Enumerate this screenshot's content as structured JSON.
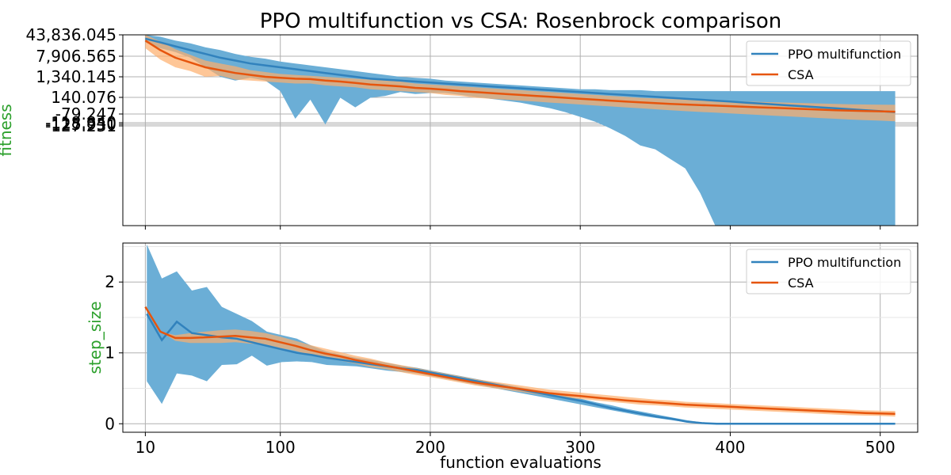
{
  "chart_data": [
    {
      "type": "line",
      "title": "PPO multifunction vs CSA: Rosenbrock comparison",
      "xlabel": "",
      "ylabel": "fitness",
      "ylabel_color": "#2ca02c",
      "x_ticks": [
        10,
        100,
        200,
        300,
        400,
        500
      ],
      "y_ticks": [
        "43,836.045",
        "7,906.565",
        "1,340.145",
        "140.076",
        "-79.247",
        "-118.840",
        "-125.950",
        "-127.231"
      ],
      "grid": true,
      "legend": "top-right",
      "series": [
        {
          "name": "PPO multifunction",
          "color": "#3182bd",
          "fill": "#6baed6",
          "x": [
            10,
            20,
            30,
            40,
            50,
            60,
            70,
            80,
            90,
            100,
            110,
            120,
            130,
            140,
            150,
            160,
            170,
            180,
            190,
            200,
            210,
            220,
            230,
            240,
            250,
            260,
            270,
            280,
            290,
            300,
            310,
            320,
            330,
            340,
            350,
            360,
            370,
            380,
            390,
            400,
            410,
            420,
            430,
            440,
            450,
            460,
            470,
            480,
            490,
            500,
            510
          ],
          "mean": [
            0.98,
            0.96,
            0.94,
            0.92,
            0.9,
            0.88,
            0.865,
            0.85,
            0.84,
            0.83,
            0.82,
            0.81,
            0.8,
            0.79,
            0.78,
            0.77,
            0.765,
            0.76,
            0.755,
            0.75,
            0.745,
            0.74,
            0.735,
            0.73,
            0.725,
            0.72,
            0.715,
            0.71,
            0.705,
            0.7,
            0.695,
            0.69,
            0.685,
            0.68,
            0.675,
            0.67,
            0.665,
            0.66,
            0.655,
            0.65,
            0.645,
            0.64,
            0.635,
            0.63,
            0.625,
            0.62,
            0.615,
            0.61,
            0.605,
            0.6,
            0.595
          ],
          "upper": [
            1.0,
            0.99,
            0.97,
            0.955,
            0.935,
            0.92,
            0.9,
            0.885,
            0.875,
            0.86,
            0.85,
            0.84,
            0.83,
            0.82,
            0.81,
            0.8,
            0.79,
            0.78,
            0.775,
            0.77,
            0.76,
            0.755,
            0.75,
            0.745,
            0.74,
            0.735,
            0.73,
            0.725,
            0.72,
            0.715,
            0.715,
            0.71,
            0.71,
            0.71,
            0.705,
            0.705,
            0.705,
            0.705,
            0.705,
            0.705,
            0.705,
            0.705,
            0.705,
            0.705,
            0.705,
            0.705,
            0.705,
            0.705,
            0.705,
            0.705,
            0.705
          ],
          "lower": [
            0.96,
            0.93,
            0.91,
            0.88,
            0.83,
            0.78,
            0.76,
            0.775,
            0.76,
            0.705,
            0.56,
            0.66,
            0.53,
            0.67,
            0.62,
            0.67,
            0.68,
            0.7,
            0.69,
            0.695,
            0.695,
            0.685,
            0.675,
            0.665,
            0.655,
            0.645,
            0.63,
            0.615,
            0.595,
            0.57,
            0.545,
            0.51,
            0.47,
            0.42,
            0.4,
            0.35,
            0.3,
            0.17,
            0.0,
            0.0,
            0.0,
            0.0,
            0.0,
            0.0,
            0.0,
            0.0,
            0.0,
            0.0,
            0.0,
            0.0,
            0.0
          ]
        },
        {
          "name": "CSA",
          "color": "#e6550d",
          "fill": "#fdae6b",
          "x": [
            10,
            20,
            30,
            40,
            50,
            60,
            70,
            80,
            90,
            100,
            110,
            120,
            130,
            140,
            150,
            160,
            170,
            180,
            190,
            200,
            210,
            220,
            230,
            240,
            250,
            260,
            270,
            280,
            290,
            300,
            310,
            320,
            330,
            340,
            350,
            360,
            370,
            380,
            390,
            400,
            410,
            420,
            430,
            440,
            450,
            460,
            470,
            480,
            490,
            500,
            510
          ],
          "mean": [
            0.97,
            0.92,
            0.88,
            0.855,
            0.83,
            0.815,
            0.8,
            0.79,
            0.78,
            0.775,
            0.77,
            0.768,
            0.76,
            0.755,
            0.748,
            0.74,
            0.735,
            0.73,
            0.722,
            0.718,
            0.712,
            0.705,
            0.7,
            0.695,
            0.69,
            0.685,
            0.68,
            0.675,
            0.67,
            0.665,
            0.66,
            0.655,
            0.65,
            0.646,
            0.642,
            0.638,
            0.635,
            0.632,
            0.629,
            0.626,
            0.623,
            0.62,
            0.617,
            0.614,
            0.611,
            0.608,
            0.605,
            0.603,
            0.601,
            0.599,
            0.597
          ],
          "upper": [
            1.0,
            0.965,
            0.925,
            0.895,
            0.865,
            0.85,
            0.835,
            0.815,
            0.805,
            0.795,
            0.79,
            0.785,
            0.78,
            0.775,
            0.77,
            0.765,
            0.76,
            0.755,
            0.745,
            0.74,
            0.735,
            0.73,
            0.725,
            0.72,
            0.715,
            0.71,
            0.705,
            0.7,
            0.695,
            0.69,
            0.685,
            0.68,
            0.675,
            0.67,
            0.667,
            0.664,
            0.661,
            0.658,
            0.655,
            0.652,
            0.65,
            0.648,
            0.646,
            0.644,
            0.642,
            0.64,
            0.638,
            0.636,
            0.635,
            0.634,
            0.633
          ],
          "lower": [
            0.93,
            0.87,
            0.83,
            0.81,
            0.78,
            0.785,
            0.765,
            0.76,
            0.755,
            0.75,
            0.745,
            0.745,
            0.735,
            0.73,
            0.725,
            0.715,
            0.71,
            0.705,
            0.7,
            0.695,
            0.685,
            0.68,
            0.67,
            0.665,
            0.66,
            0.655,
            0.65,
            0.645,
            0.64,
            0.635,
            0.63,
            0.625,
            0.62,
            0.615,
            0.61,
            0.605,
            0.6,
            0.596,
            0.592,
            0.588,
            0.584,
            0.58,
            0.576,
            0.572,
            0.568,
            0.564,
            0.56,
            0.556,
            0.553,
            0.55,
            0.547
          ]
        }
      ]
    },
    {
      "type": "line",
      "xlabel": "function evaluations",
      "ylabel": "step_size",
      "ylabel_color": "#2ca02c",
      "xlim": [
        -5,
        525
      ],
      "ylim": [
        -0.12,
        2.55
      ],
      "x_ticks": [
        10,
        100,
        200,
        300,
        400,
        500
      ],
      "y_ticks": [
        0,
        1,
        2
      ],
      "grid": true,
      "legend": "top-right",
      "series": [
        {
          "name": "PPO multifunction",
          "color": "#3182bd",
          "fill": "#6baed6",
          "x": [
            11,
            21,
            31,
            41,
            51,
            61,
            71,
            81,
            91,
            101,
            111,
            121,
            131,
            141,
            151,
            161,
            171,
            181,
            191,
            201,
            211,
            221,
            231,
            241,
            251,
            261,
            271,
            281,
            291,
            301,
            311,
            321,
            331,
            341,
            351,
            361,
            371,
            381,
            391,
            401,
            411,
            421,
            431,
            441,
            451,
            461,
            471,
            481,
            491,
            501,
            510
          ],
          "mean": [
            1.55,
            1.18,
            1.44,
            1.28,
            1.25,
            1.22,
            1.2,
            1.15,
            1.1,
            1.05,
            1.0,
            0.97,
            0.93,
            0.9,
            0.87,
            0.84,
            0.81,
            0.78,
            0.76,
            0.72,
            0.68,
            0.64,
            0.6,
            0.56,
            0.52,
            0.48,
            0.44,
            0.4,
            0.36,
            0.32,
            0.27,
            0.22,
            0.18,
            0.14,
            0.1,
            0.07,
            0.03,
            0.01,
            0.0,
            0.0,
            0.0,
            0.0,
            0.0,
            0.0,
            0.0,
            0.0,
            0.0,
            0.0,
            0.0,
            0.0,
            0.0
          ],
          "upper": [
            2.53,
            2.05,
            2.15,
            1.88,
            1.93,
            1.65,
            1.55,
            1.45,
            1.3,
            1.25,
            1.2,
            1.1,
            1.02,
            0.97,
            0.93,
            0.9,
            0.86,
            0.82,
            0.79,
            0.75,
            0.71,
            0.67,
            0.63,
            0.59,
            0.55,
            0.51,
            0.47,
            0.43,
            0.39,
            0.35,
            0.3,
            0.26,
            0.21,
            0.17,
            0.13,
            0.09,
            0.05,
            0.02,
            0.01,
            0.0,
            0.0,
            0.0,
            0.0,
            0.0,
            0.0,
            0.0,
            0.0,
            0.0,
            0.0,
            0.0,
            0.0
          ],
          "lower": [
            0.6,
            0.28,
            0.71,
            0.68,
            0.6,
            0.83,
            0.84,
            0.96,
            0.82,
            0.87,
            0.88,
            0.87,
            0.83,
            0.82,
            0.81,
            0.78,
            0.75,
            0.73,
            0.71,
            0.67,
            0.63,
            0.59,
            0.55,
            0.51,
            0.47,
            0.43,
            0.39,
            0.35,
            0.31,
            0.27,
            0.23,
            0.19,
            0.15,
            0.11,
            0.08,
            0.05,
            0.02,
            0.0,
            0.0,
            0.0,
            0.0,
            0.0,
            0.0,
            0.0,
            0.0,
            0.0,
            0.0,
            0.0,
            0.0,
            0.0,
            0.0
          ]
        },
        {
          "name": "CSA",
          "color": "#e6550d",
          "fill": "#fdae6b",
          "x": [
            10,
            20,
            30,
            40,
            50,
            60,
            70,
            80,
            90,
            100,
            110,
            120,
            130,
            140,
            150,
            160,
            170,
            180,
            190,
            200,
            210,
            220,
            230,
            240,
            250,
            260,
            270,
            280,
            290,
            300,
            310,
            320,
            330,
            340,
            350,
            360,
            370,
            380,
            390,
            400,
            410,
            420,
            430,
            440,
            450,
            460,
            470,
            480,
            490,
            500,
            510
          ],
          "mean": [
            1.65,
            1.3,
            1.21,
            1.21,
            1.22,
            1.23,
            1.24,
            1.22,
            1.2,
            1.15,
            1.1,
            1.04,
            0.99,
            0.95,
            0.9,
            0.86,
            0.82,
            0.78,
            0.74,
            0.7,
            0.66,
            0.62,
            0.58,
            0.55,
            0.52,
            0.49,
            0.46,
            0.43,
            0.41,
            0.39,
            0.37,
            0.35,
            0.33,
            0.315,
            0.3,
            0.285,
            0.27,
            0.26,
            0.25,
            0.24,
            0.23,
            0.22,
            0.21,
            0.2,
            0.19,
            0.18,
            0.17,
            0.16,
            0.15,
            0.145,
            0.14
          ],
          "upper": [
            1.65,
            1.3,
            1.25,
            1.28,
            1.3,
            1.32,
            1.33,
            1.31,
            1.28,
            1.23,
            1.17,
            1.11,
            1.06,
            1.01,
            0.96,
            0.92,
            0.87,
            0.83,
            0.79,
            0.75,
            0.71,
            0.67,
            0.63,
            0.6,
            0.57,
            0.54,
            0.51,
            0.48,
            0.46,
            0.44,
            0.42,
            0.4,
            0.38,
            0.36,
            0.34,
            0.33,
            0.31,
            0.3,
            0.29,
            0.28,
            0.27,
            0.26,
            0.25,
            0.24,
            0.23,
            0.22,
            0.21,
            0.2,
            0.19,
            0.185,
            0.18
          ],
          "lower": [
            1.65,
            1.3,
            1.17,
            1.14,
            1.14,
            1.14,
            1.15,
            1.13,
            1.12,
            1.07,
            1.03,
            0.97,
            0.92,
            0.89,
            0.85,
            0.8,
            0.77,
            0.73,
            0.69,
            0.66,
            0.62,
            0.58,
            0.54,
            0.51,
            0.48,
            0.45,
            0.42,
            0.39,
            0.37,
            0.35,
            0.33,
            0.31,
            0.29,
            0.27,
            0.26,
            0.245,
            0.23,
            0.22,
            0.21,
            0.2,
            0.19,
            0.18,
            0.17,
            0.16,
            0.15,
            0.14,
            0.13,
            0.12,
            0.115,
            0.11,
            0.1
          ]
        }
      ]
    }
  ]
}
